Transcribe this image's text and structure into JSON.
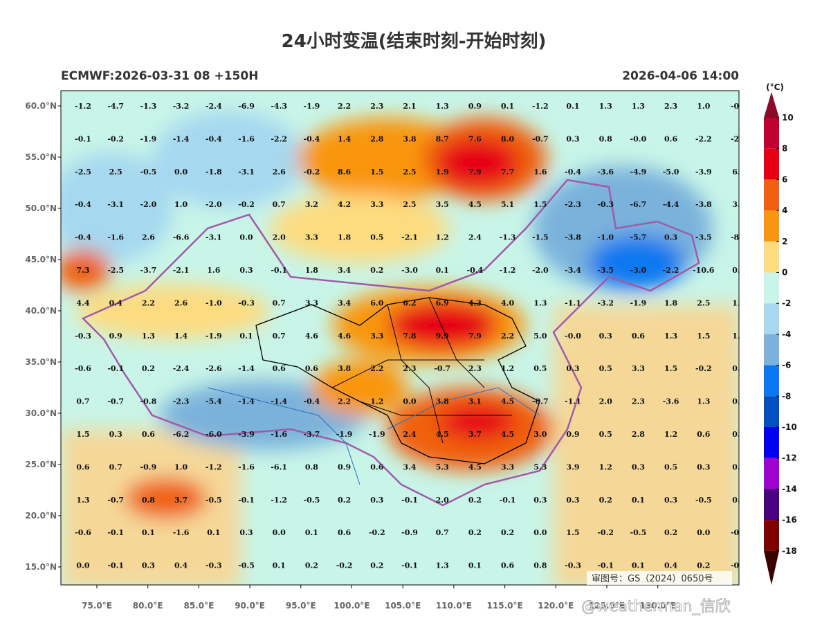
{
  "title": "24小时变温(结束时刻-开始时刻)",
  "subtitle_left": "ECMWF:2026-03-31 08 +150H",
  "subtitle_right": "2026-04-06 14:00",
  "map": {
    "lat_labels": [
      "60.0°N",
      "55.0°N",
      "50.0°N",
      "45.0°N",
      "40.0°N",
      "35.0°N",
      "30.0°N",
      "25.0°N",
      "20.0°N",
      "15.0°N"
    ],
    "lon_labels": [
      "75.0°E",
      "80.0°E",
      "85.0°E",
      "90.0°E",
      "95.0°E",
      "100.0°E",
      "105.0°E",
      "110.0°E",
      "115.0°E",
      "120.0°E",
      "125.0°E",
      "130.0°E"
    ],
    "values": [
      [
        "-1.2",
        "-4.7",
        "-1.3",
        "-3.2",
        "-2.4",
        "-6.9",
        "-4.3",
        "-1.9",
        "2.2",
        "2.3",
        "2.1",
        "1.3",
        "0.9",
        "0.1",
        "-1.2",
        "0.1",
        "1.3",
        "1.3",
        "2.3",
        "1.0",
        "-0."
      ],
      [
        "-0.1",
        "-0.2",
        "-1.9",
        "-1.4",
        "-0.4",
        "-1.6",
        "-2.2",
        "-0.4",
        "1.4",
        "2.8",
        "3.8",
        "8.7",
        "7.6",
        "8.0",
        "-0.7",
        "0.3",
        "0.8",
        "-0.0",
        "0.6",
        "-2.2",
        "-2."
      ],
      [
        "-2.5",
        "2.5",
        "-0.5",
        "0.0",
        "-1.8",
        "-3.1",
        "2.6",
        "-0.2",
        "8.6",
        "1.5",
        "2.5",
        "1.9",
        "7.9",
        "7.7",
        "1.6",
        "-0.4",
        "-3.6",
        "-4.9",
        "-5.0",
        "-3.9",
        "6."
      ],
      [
        "-0.4",
        "-3.1",
        "-2.0",
        "1.0",
        "-2.0",
        "-0.2",
        "0.7",
        "3.2",
        "4.2",
        "3.3",
        "2.5",
        "3.5",
        "4.5",
        "5.1",
        "1.5",
        "-2.3",
        "-0.3",
        "-6.7",
        "-4.4",
        "-3.8",
        "3."
      ],
      [
        "-0.4",
        "-1.6",
        "2.6",
        "-6.6",
        "-3.1",
        "0.0",
        "2.0",
        "3.3",
        "1.8",
        "0.5",
        "-2.1",
        "1.2",
        "2.4",
        "-1.3",
        "-1.5",
        "-3.8",
        "-1.0",
        "-5.7",
        "0.3",
        "-3.5",
        "-8."
      ],
      [
        "7.3",
        "-2.5",
        "-3.7",
        "-2.1",
        "1.6",
        "0.3",
        "-0.1",
        "1.8",
        "3.4",
        "0.2",
        "-3.0",
        "0.1",
        "-0.4",
        "-1.2",
        "-2.0",
        "-3.4",
        "-3.5",
        "-3.0",
        "-2.2",
        "-10.6",
        "0."
      ],
      [
        "4.4",
        "0.4",
        "2.2",
        "2.6",
        "-1.0",
        "-0.3",
        "0.7",
        "3.3",
        "3.4",
        "6.0",
        "6.2",
        "6.9",
        "4.3",
        "4.0",
        "1.3",
        "-1.1",
        "-3.2",
        "-1.9",
        "1.8",
        "2.5",
        "1."
      ],
      [
        "-0.3",
        "0.9",
        "1.3",
        "1.4",
        "-1.9",
        "0.1",
        "0.7",
        "4.6",
        "4.6",
        "3.3",
        "7.8",
        "9.9",
        "7.9",
        "2.2",
        "5.0",
        "-0.0",
        "0.3",
        "0.6",
        "1.3",
        "1.5",
        "1."
      ],
      [
        "-0.6",
        "-0.1",
        "0.2",
        "-2.4",
        "-2.6",
        "-1.4",
        "0.6",
        "0.6",
        "3.8",
        "2.2",
        "2.3",
        "-0.7",
        "2.3",
        "1.2",
        "0.5",
        "0.3",
        "0.5",
        "3.3",
        "1.5",
        "-0.2",
        "0."
      ],
      [
        "0.7",
        "-0.7",
        "-0.8",
        "-2.3",
        "-5.4",
        "-1.4",
        "-1.4",
        "-0.4",
        "2.2",
        "1.2",
        "0.0",
        "3.8",
        "3.1",
        "4.5",
        "-0.7",
        "-1.1",
        "2.0",
        "2.3",
        "-3.6",
        "1.3",
        "0."
      ],
      [
        "1.5",
        "0.3",
        "0.6",
        "-6.2",
        "-6.0",
        "-3.9",
        "-1.6",
        "-3.7",
        "-1.9",
        "-1.9",
        "2.4",
        "4.5",
        "3.7",
        "4.5",
        "3.0",
        "0.9",
        "0.5",
        "2.8",
        "1.2",
        "0.6",
        "0."
      ],
      [
        "0.6",
        "0.7",
        "-0.9",
        "1.0",
        "-1.2",
        "-1.6",
        "-6.1",
        "0.8",
        "0.9",
        "0.6",
        "3.4",
        "5.3",
        "4.5",
        "3.3",
        "5.3",
        "3.9",
        "1.2",
        "0.3",
        "0.5",
        "0.3",
        "0."
      ],
      [
        "1.3",
        "-0.7",
        "0.8",
        "3.7",
        "-0.5",
        "-0.1",
        "-1.2",
        "-0.5",
        "0.2",
        "0.3",
        "-0.1",
        "2.0",
        "0.2",
        "-0.1",
        "0.3",
        "0.3",
        "0.2",
        "0.1",
        "0.3",
        "-0.5",
        "0."
      ],
      [
        "-0.6",
        "-0.1",
        "0.1",
        "-1.6",
        "0.1",
        "0.3",
        "0.0",
        "0.1",
        "0.6",
        "-0.2",
        "-0.9",
        "0.7",
        "0.2",
        "0.2",
        "0.0",
        "1.5",
        "-0.2",
        "-0.5",
        "0.2",
        "0.0",
        "-0."
      ],
      [
        "0.0",
        "-0.1",
        "0.3",
        "0.4",
        "-0.3",
        "-0.5",
        "0.1",
        "0.2",
        "-0.2",
        "0.2",
        "-0.1",
        "1.3",
        "0.1",
        "0.6",
        "0.8",
        "-0.3",
        "-0.1",
        "0.1",
        "0.4",
        "0.2",
        "-0."
      ]
    ]
  },
  "colorbar": {
    "unit": "(°C)",
    "labels": [
      10,
      8,
      6,
      4,
      2,
      0,
      -2,
      -4,
      -6,
      -8,
      -10,
      -12,
      -14,
      -16,
      -18
    ],
    "colors": [
      "#8b0a2a",
      "#c0002f",
      "#e60012",
      "#f06010",
      "#f99610",
      "#fddc80",
      "#c8f5e8",
      "#a6d8f0",
      "#7ab2dc",
      "#0a78f0",
      "#0050c0",
      "#0000f0",
      "#a000d0",
      "#4b0082",
      "#800000",
      "#3a0000"
    ]
  },
  "stamp": "审图号：GS（2024）0650号",
  "watermark": "@weatherman_信欣"
}
